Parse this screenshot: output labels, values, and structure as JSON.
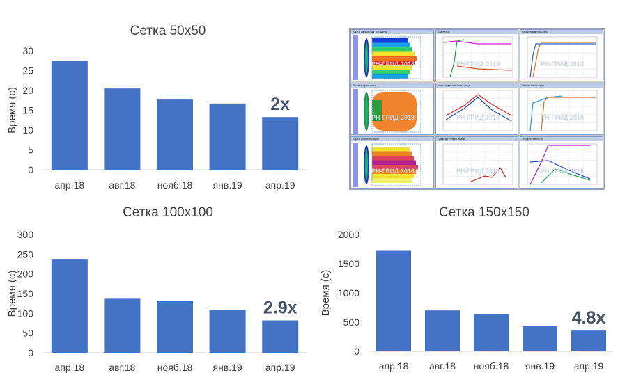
{
  "charts": [
    {
      "id": "c50",
      "title": "Сетка 50x50",
      "ylabel": "Время (с)",
      "annotation": "2x",
      "categories": [
        "апр.18",
        "авг.18",
        "нояб.18",
        "янв.19",
        "апр.19"
      ],
      "values": [
        27.5,
        20.5,
        17.7,
        16.7,
        13.3
      ],
      "ylim": [
        0,
        30
      ],
      "yticks": [
        0,
        5,
        10,
        15,
        20,
        25,
        30
      ]
    },
    {
      "id": "c100",
      "title": "Сетка 100x100",
      "ylabel": "Время (с)",
      "annotation": "2.9x",
      "categories": [
        "апр.18",
        "авг.18",
        "нояб.18",
        "янв.19",
        "апр.19"
      ],
      "values": [
        238,
        137,
        131,
        109,
        82
      ],
      "ylim": [
        0,
        300
      ],
      "yticks": [
        0,
        50,
        100,
        150,
        200,
        250,
        300
      ]
    },
    {
      "id": "c150",
      "title": "Сетка 150x150",
      "ylabel": "Время (с)",
      "annotation": "4.8x",
      "categories": [
        "апр.18",
        "авг.18",
        "нояб.18",
        "янв.19",
        "апр.19"
      ],
      "values": [
        1720,
        700,
        635,
        430,
        355
      ],
      "ylim": [
        0,
        2000
      ],
      "yticks": [
        0,
        500,
        1000,
        1500,
        2000
      ]
    }
  ],
  "chart_data": [
    {
      "type": "bar",
      "title": "Сетка 50x50",
      "ylabel": "Время (с)",
      "categories": [
        "апр.18",
        "авг.18",
        "нояб.18",
        "янв.19",
        "апр.19"
      ],
      "values": [
        27.5,
        20.5,
        17.7,
        16.7,
        13.3
      ],
      "ylim": [
        0,
        30
      ],
      "annotation": "2x",
      "grid": false,
      "legend": "none"
    },
    {
      "type": "bar",
      "title": "Сетка 100x100",
      "ylabel": "Время (с)",
      "categories": [
        "апр.18",
        "авг.18",
        "нояб.18",
        "янв.19",
        "апр.19"
      ],
      "values": [
        238,
        137,
        131,
        109,
        82
      ],
      "ylim": [
        0,
        300
      ],
      "annotation": "2.9x",
      "grid": false,
      "legend": "none"
    },
    {
      "type": "bar",
      "title": "Сетка 150x150",
      "ylabel": "Время (с)",
      "categories": [
        "апр.18",
        "авг.18",
        "нояб.18",
        "янв.19",
        "апр.19"
      ],
      "values": [
        1720,
        700,
        635,
        430,
        355
      ],
      "ylim": [
        0,
        2000
      ],
      "annotation": "4.8x",
      "grid": false,
      "legend": "none"
    }
  ],
  "colors": {
    "bar": "#4472c4",
    "annotation": "#44546a",
    "text": "#404040"
  },
  "screenshot": {
    "watermark": "РН-ГРИД 2018",
    "windows": [
      {
        "title": "Карта раскрытия трещины",
        "kind": "heat"
      },
      {
        "title": "Давление",
        "kind": "lines1"
      },
      {
        "title": "Геометрия трещины",
        "kind": "lines2"
      },
      {
        "title": "Эрозия проппанта",
        "kind": "particles"
      },
      {
        "title": "Чистое давление в конце",
        "kind": "peak"
      },
      {
        "title": "Высота трещины",
        "kind": "lines3"
      },
      {
        "title": "Карта концентрации",
        "kind": "heat2"
      },
      {
        "title": "График Нолте-Смита",
        "kind": "curve"
      },
      {
        "title": "Эффективность",
        "kind": "lines4"
      }
    ]
  }
}
